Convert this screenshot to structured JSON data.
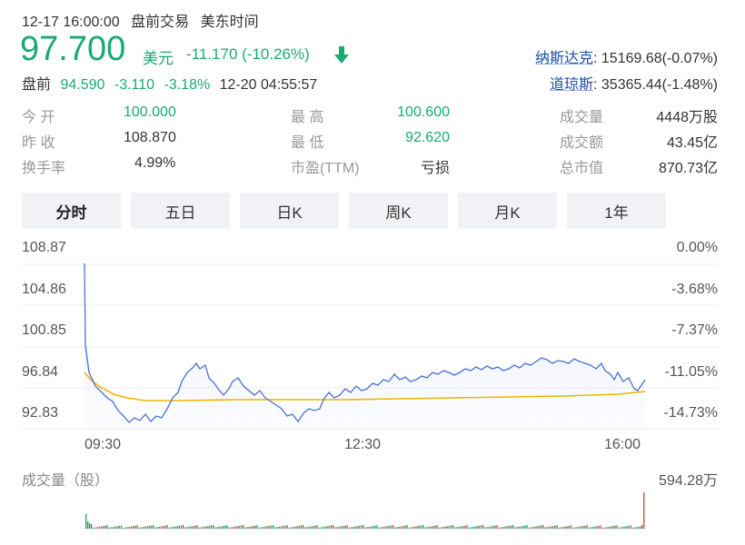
{
  "header": {
    "timestamp": "12-17 16:00:00",
    "session": "盘前交易",
    "timezone": "美东时间",
    "price": "97.700",
    "currency": "美元",
    "change": "-11.170 (-10.26%)",
    "premarket_label": "盘前",
    "premarket_price": "94.590",
    "premarket_change": "-3.110",
    "premarket_pct": "-3.18%",
    "premarket_time": "12-20 04:55:57"
  },
  "indices": [
    {
      "name": "纳斯达克",
      "value": ": 15169.68(-0.07%)"
    },
    {
      "name": "道琼斯",
      "value": ": 35365.44(-1.48%)"
    }
  ],
  "stats": {
    "col1": [
      {
        "label": "今  开",
        "value": "100.000",
        "color": "#1aaa6f"
      },
      {
        "label": "昨  收",
        "value": "108.870",
        "color": "#333333"
      },
      {
        "label": "换手率",
        "value": "4.99%",
        "color": "#333333"
      }
    ],
    "col2": [
      {
        "label": "最  高",
        "value": "100.600",
        "color": "#1aaa6f"
      },
      {
        "label": "最  低",
        "value": "92.620",
        "color": "#1aaa6f"
      },
      {
        "label": "市盈(TTM)",
        "value": "亏损",
        "color": "#333333"
      }
    ],
    "col3": [
      {
        "label": "成交量",
        "value": "4448万股",
        "color": "#333333"
      },
      {
        "label": "成交额",
        "value": "43.45亿",
        "color": "#333333"
      },
      {
        "label": "总市值",
        "value": "870.73亿",
        "color": "#333333"
      }
    ]
  },
  "tabs": [
    "分时",
    "五日",
    "日K",
    "周K",
    "月K",
    "1年"
  ],
  "active_tab": "分时",
  "chart": {
    "y_labels": [
      "108.87",
      "104.86",
      "100.85",
      "96.84",
      "92.83"
    ],
    "pct_labels": [
      "0.00%",
      "-3.68%",
      "-7.37%",
      "-11.05%",
      "-14.73%"
    ],
    "x_labels": [
      "09:30",
      "12:30",
      "16:00"
    ],
    "volume_label": "成交量（股）",
    "volume_max": "594.28万",
    "price_color": "#4b6fd6",
    "avg_color": "#f0b400",
    "down_arrow_color": "#1aaa6f"
  }
}
